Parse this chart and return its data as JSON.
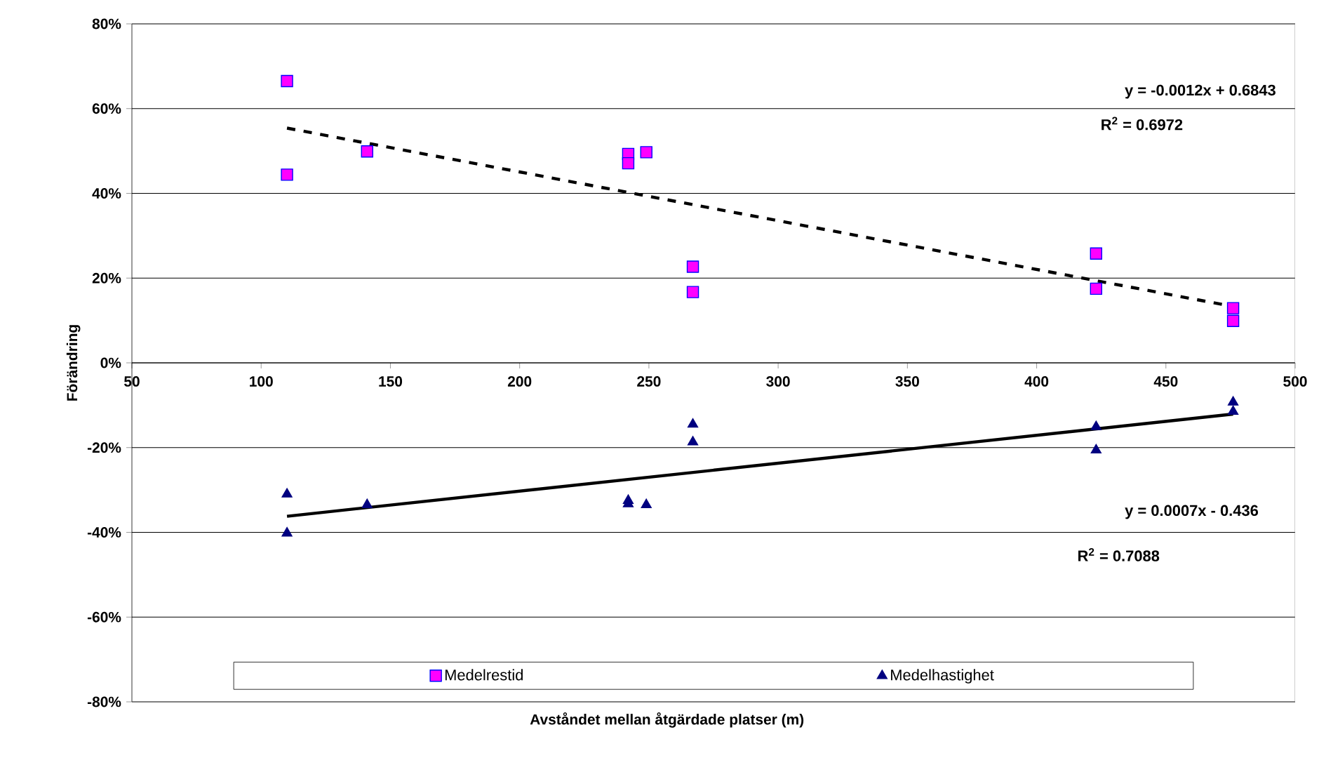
{
  "chart_data": {
    "type": "scatter",
    "xlabel": "Avståndet mellan åtgärdade platser (m)",
    "ylabel": "Förändring",
    "xlim": [
      50,
      500
    ],
    "xticks": [
      50,
      100,
      150,
      200,
      250,
      300,
      350,
      400,
      450,
      500
    ],
    "ylim": [
      -80,
      80
    ],
    "yticks": [
      {
        "value": -80,
        "label": "-80%"
      },
      {
        "value": -60,
        "label": "-60%"
      },
      {
        "value": -40,
        "label": "-40%"
      },
      {
        "value": -20,
        "label": "-20%"
      },
      {
        "value": 0,
        "label": "0%"
      },
      {
        "value": 20,
        "label": "20%"
      },
      {
        "value": 40,
        "label": "40%"
      },
      {
        "value": 60,
        "label": "60%"
      },
      {
        "value": 80,
        "label": "80%"
      }
    ],
    "grid": "y",
    "legend": "bottom",
    "series": [
      {
        "name": "Medelrestid",
        "marker": "square",
        "color": "#ff00ff",
        "x": [
          110,
          110,
          141,
          242,
          242,
          249,
          267,
          267,
          423,
          423,
          476,
          476
        ],
        "values": [
          66.5,
          44.4,
          49.9,
          49.3,
          47.1,
          49.7,
          22.7,
          16.7,
          25.8,
          17.5,
          12.9,
          9.9
        ]
      },
      {
        "name": "Medelhastighet",
        "marker": "triangle",
        "color": "#000080",
        "x": [
          110,
          110,
          141,
          242,
          242,
          249,
          267,
          267,
          423,
          423,
          476,
          476
        ],
        "values": [
          -31.0,
          -40.2,
          -33.5,
          -32.5,
          -33.3,
          -33.5,
          -14.5,
          -18.7,
          -15.1,
          -20.6,
          -9.3,
          -11.5
        ]
      },
      {
        "type": "line",
        "marker": "none",
        "line_style": "dashed",
        "color": "#000000",
        "x": [
          110,
          476
        ],
        "values": [
          55.4,
          13.3
        ]
      },
      {
        "type": "line",
        "marker": "none",
        "line_style": "solid",
        "color": "#000000",
        "x": [
          110,
          476
        ],
        "values": [
          -36.2,
          -12.1
        ]
      }
    ],
    "annotations": [
      "y = -0.0012x + 0.6843",
      "R$^{2}$ = 0.6972",
      "y = 0.0007x - 0.436",
      "R$^{2}$ = 0.7088"
    ]
  }
}
